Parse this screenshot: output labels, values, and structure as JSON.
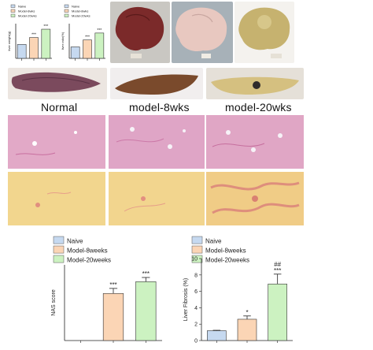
{
  "figure": {
    "group_labels": [
      "Normal",
      "model-8wks",
      "model-20wks"
    ],
    "colors": {
      "naive": "#c6d9f0",
      "model8": "#fbd5b5",
      "model20": "#ccf2c1",
      "he_stain": "#e4a8c4",
      "sirius": "#f1d58c",
      "sirius_fibrosis": "#e49a86"
    }
  },
  "chart_data": [
    {
      "type": "bar",
      "title": "",
      "ylabel": "liver weight(g)",
      "categories": [
        "Naive",
        "Model-8wks",
        "Model-20wks"
      ],
      "series": [
        {
          "name": "",
          "values": [
            1.0,
            1.5,
            2.1
          ]
        }
      ],
      "ylim": [
        0,
        2.5
      ],
      "legend": [
        "Naive",
        "Model-8wks",
        "Model-20wks"
      ],
      "significance": [
        "",
        "***",
        "***"
      ]
    },
    {
      "type": "bar",
      "title": "",
      "ylabel": "liver ratio(%)",
      "categories": [
        "Naive",
        "Model-8wks",
        "Model-20wks"
      ],
      "series": [
        {
          "name": "",
          "values": [
            3.3,
            5.3,
            7.3
          ]
        }
      ],
      "ylim": [
        0,
        10
      ],
      "legend": [
        "Naive",
        "Model-8wks",
        "Model-20wks"
      ],
      "significance": [
        "",
        "***",
        "***"
      ]
    },
    {
      "type": "bar",
      "title": "",
      "ylabel": "NAS score",
      "categories": [
        "Naive",
        "Model-8weeks",
        "Model-20weeks"
      ],
      "series": [
        {
          "name": "",
          "values": [
            0,
            5.6,
            7.0
          ]
        }
      ],
      "errors": [
        0,
        0.6,
        0.5
      ],
      "ylim": [
        0,
        9
      ],
      "yticks": [],
      "legend": [
        "Naive",
        "Model-8weeks",
        "Model-20weeks"
      ],
      "significance": [
        "",
        "***",
        "***"
      ]
    },
    {
      "type": "bar",
      "title": "",
      "ylabel": "Liver Fibrosis (%)",
      "categories": [
        "Naive",
        "Model-8weeks",
        "Model-20weeks"
      ],
      "series": [
        {
          "name": "",
          "values": [
            1.2,
            2.6,
            6.9
          ]
        }
      ],
      "errors": [
        0.05,
        0.4,
        1.2
      ],
      "ylim": [
        0,
        10
      ],
      "yticks": [
        0,
        2,
        4,
        6,
        8,
        10
      ],
      "legend": [
        "Naive",
        "Model-8weeks",
        "Model-20weeks"
      ],
      "significance": [
        "",
        "*",
        "***"
      ],
      "significance2": [
        "",
        "",
        "##"
      ]
    }
  ]
}
